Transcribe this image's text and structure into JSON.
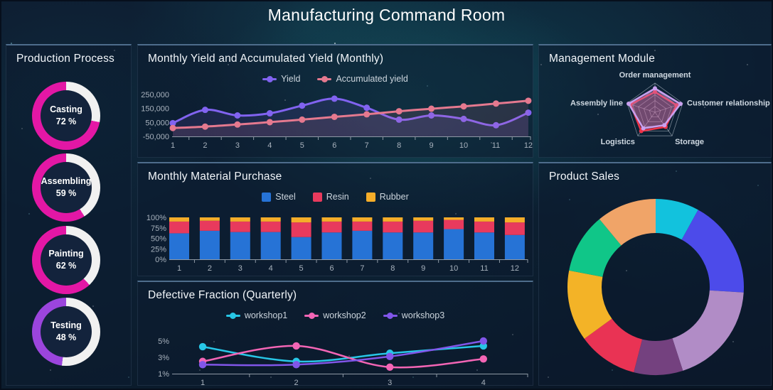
{
  "header": {
    "title": "Manufacturing Command Room"
  },
  "panels": {
    "production": {
      "title": "Production Process"
    },
    "yield": {
      "title": "Monthly Yield and Accumulated Yield (Monthly)"
    },
    "material": {
      "title": "Monthly Material Purchase"
    },
    "defective": {
      "title": "Defective Fraction (Quarterly)"
    },
    "management": {
      "title": "Management Module"
    },
    "sales": {
      "title": "Product Sales"
    }
  },
  "chart_data": [
    {
      "id": "production-gauges",
      "type": "ring-gauge",
      "title": "Production Process",
      "track_color": "#f1f1f1",
      "items": [
        {
          "label": "Casting",
          "value": 72,
          "value_label": "72 %",
          "color": "#e317a5"
        },
        {
          "label": "Assembling",
          "value": 59,
          "value_label": "59 %",
          "color": "#e317a5"
        },
        {
          "label": "Painting",
          "value": 62,
          "value_label": "62 %",
          "color": "#e317a5"
        },
        {
          "label": "Testing",
          "value": 48,
          "value_label": "48 %",
          "color": "#9b45dd"
        }
      ]
    },
    {
      "id": "yield",
      "type": "line",
      "title": "Monthly Yield and Accumulated Yield (Monthly)",
      "x": [
        "1",
        "2",
        "3",
        "4",
        "5",
        "6",
        "7",
        "8",
        "9",
        "10",
        "11",
        "12"
      ],
      "ylim": [
        -50000,
        250000
      ],
      "y_ticks": [
        {
          "label": "250,000",
          "value": 250000
        },
        {
          "label": "150,000",
          "value": 150000
        },
        {
          "label": "50,000",
          "value": 50000
        },
        {
          "label": "-50,000",
          "value": -50000
        }
      ],
      "legend_position": "top-center",
      "smooth": true,
      "series": [
        {
          "name": "Yield",
          "color": "#8163f0",
          "values": [
            45000,
            140000,
            100000,
            115000,
            170000,
            220000,
            155000,
            70000,
            100000,
            75000,
            30000,
            120000
          ]
        },
        {
          "name": "Accumulated yield",
          "color": "#e5798f",
          "values": [
            10000,
            20000,
            35000,
            52000,
            70000,
            90000,
            108000,
            130000,
            148000,
            165000,
            185000,
            205000
          ]
        }
      ]
    },
    {
      "id": "material",
      "type": "bar",
      "stacked_percent": true,
      "title": "Monthly Material Purchase",
      "x": [
        "1",
        "2",
        "3",
        "4",
        "5",
        "6",
        "7",
        "8",
        "9",
        "10",
        "11",
        "12"
      ],
      "ylim": [
        0,
        100
      ],
      "y_ticks": [
        {
          "label": "100%",
          "value": 100
        },
        {
          "label": "75%",
          "value": 75
        },
        {
          "label": "50%",
          "value": 50
        },
        {
          "label": "25%",
          "value": 25
        },
        {
          "label": "0%",
          "value": 0
        }
      ],
      "legend_position": "top-center",
      "series": [
        {
          "name": "Steel",
          "color": "#2673d6",
          "values": [
            62,
            68,
            65,
            65,
            53,
            64,
            68,
            64,
            64,
            72,
            64,
            58
          ]
        },
        {
          "name": "Resin",
          "color": "#e83a5d",
          "values": [
            28,
            24,
            25,
            25,
            35,
            26,
            22,
            26,
            28,
            22,
            26,
            30
          ]
        },
        {
          "name": "Rubber",
          "color": "#f5ad29",
          "values": [
            10,
            8,
            10,
            10,
            12,
            10,
            10,
            10,
            8,
            6,
            10,
            12
          ]
        }
      ]
    },
    {
      "id": "defective",
      "type": "line",
      "title": "Defective Fraction (Quarterly)",
      "x": [
        "1",
        "2",
        "3",
        "4"
      ],
      "ylim": [
        1,
        5
      ],
      "y_ticks": [
        {
          "label": "5%",
          "value": 5
        },
        {
          "label": "3%",
          "value": 3
        },
        {
          "label": "1%",
          "value": 1
        }
      ],
      "legend_position": "top-center",
      "smooth": true,
      "series": [
        {
          "name": "workshop1",
          "color": "#27c6e6",
          "values": [
            4.3,
            2.5,
            3.5,
            4.4
          ]
        },
        {
          "name": "workshop2",
          "color": "#f365b5",
          "values": [
            2.5,
            4.4,
            1.8,
            2.8
          ]
        },
        {
          "name": "workshop3",
          "color": "#8156e9",
          "values": [
            2.1,
            2.1,
            3.1,
            5.0
          ]
        }
      ]
    },
    {
      "id": "management",
      "type": "radar",
      "title": "Management Module",
      "axes": [
        "Order management",
        "Customer relationship",
        "Storage",
        "Logistics",
        "Assembly line"
      ],
      "rings": 5,
      "max": 1,
      "series": [
        {
          "color": "#c9a0ef",
          "fill": "rgba(201,160,239,0.30)",
          "values": [
            0.82,
            0.92,
            0.55,
            0.68,
            0.95
          ]
        },
        {
          "color": "#ee3348",
          "fill": "rgba(238,51,72,0.28)",
          "values": [
            0.7,
            0.78,
            0.62,
            0.8,
            0.88
          ]
        }
      ]
    },
    {
      "id": "sales",
      "type": "pie",
      "title": "Product Sales",
      "donut": true,
      "values": [
        8,
        18,
        19,
        9,
        11,
        13,
        11,
        11
      ],
      "colors": [
        "#12c2dd",
        "#4c4bea",
        "#b18cc6",
        "#74417f",
        "#e93354",
        "#f3b327",
        "#10c688",
        "#f0a468"
      ]
    }
  ]
}
